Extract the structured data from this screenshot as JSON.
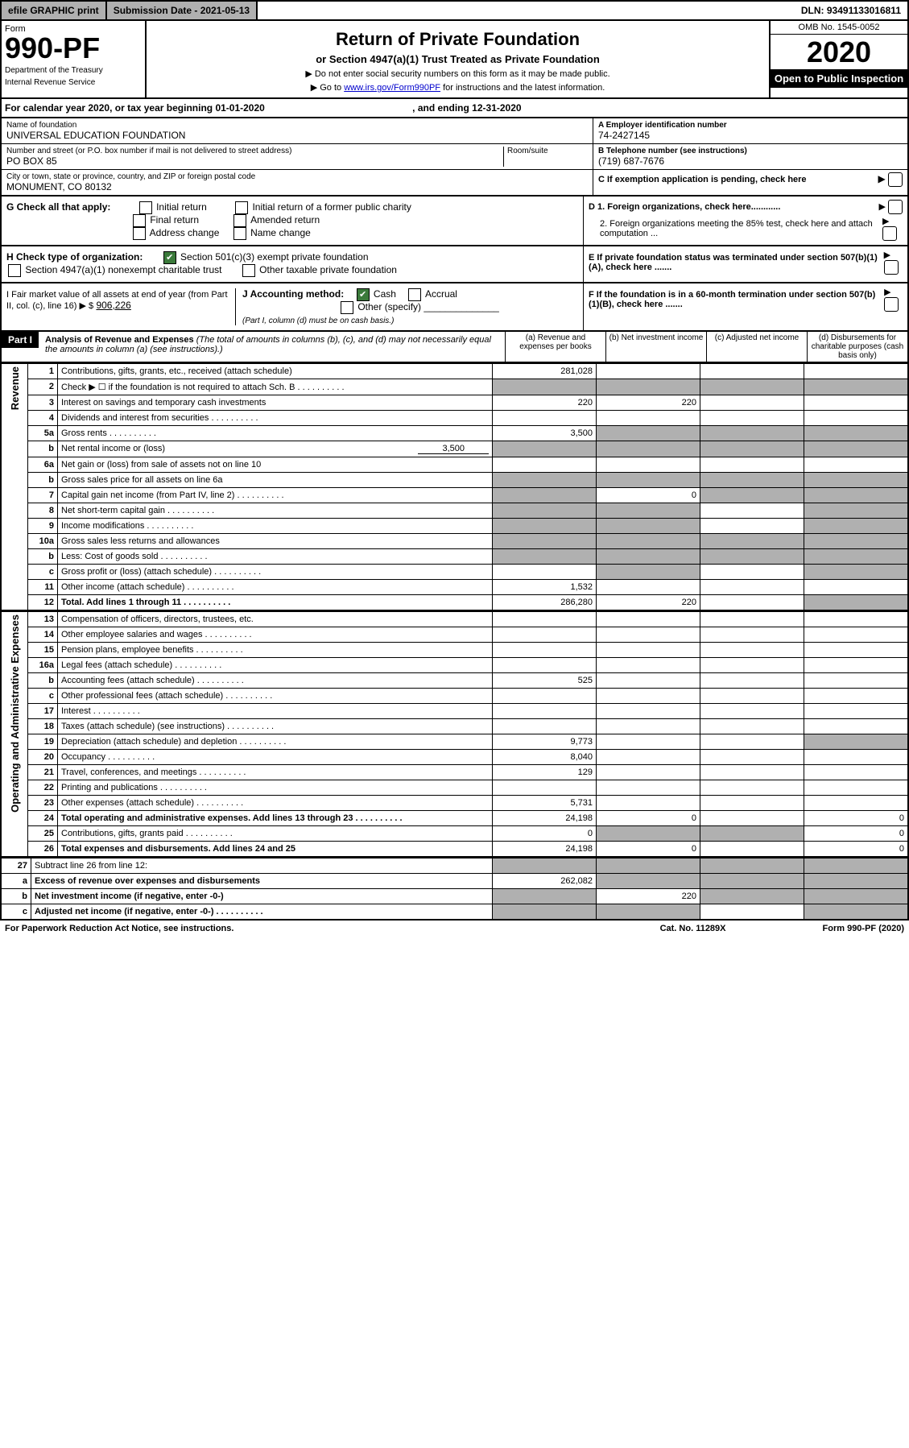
{
  "topbar": {
    "print": "efile GRAPHIC print",
    "submission": "Submission Date - 2021-05-13",
    "dln": "DLN: 93491133016811"
  },
  "hdr": {
    "form": "Form",
    "num": "990-PF",
    "dept": "Department of the Treasury",
    "irs": "Internal Revenue Service",
    "title": "Return of Private Foundation",
    "subtitle": "or Section 4947(a)(1) Trust Treated as Private Foundation",
    "note1": "▶ Do not enter social security numbers on this form as it may be made public.",
    "note2": "▶ Go to ",
    "link": "www.irs.gov/Form990PF",
    "note3": " for instructions and the latest information.",
    "omb": "OMB No. 1545-0052",
    "year": "2020",
    "open": "Open to Public Inspection"
  },
  "cal": {
    "text": "For calendar year 2020, or tax year beginning 01-01-2020",
    "end": ", and ending 12-31-2020"
  },
  "info": {
    "name_lbl": "Name of foundation",
    "name": "UNIVERSAL EDUCATION FOUNDATION",
    "addr_lbl": "Number and street (or P.O. box number if mail is not delivered to street address)",
    "room_lbl": "Room/suite",
    "addr": "PO BOX 85",
    "city_lbl": "City or town, state or province, country, and ZIP or foreign postal code",
    "city": "MONUMENT, CO  80132",
    "ein_lbl": "A Employer identification number",
    "ein": "74-2427145",
    "tel_lbl": "B Telephone number (see instructions)",
    "tel": "(719) 687-7676",
    "c": "C If exemption application is pending, check here",
    "d1": "D 1. Foreign organizations, check here............",
    "d2": "2. Foreign organizations meeting the 85% test, check here and attach computation ...",
    "e": "E If private foundation status was terminated under section 507(b)(1)(A), check here .......",
    "f": "F If the foundation is in a 60-month termination under section 507(b)(1)(B), check here ......."
  },
  "g": {
    "lbl": "G Check all that apply:",
    "i": "Initial return",
    "f": "Final return",
    "a": "Address change",
    "ir": "Initial return of a former public charity",
    "am": "Amended return",
    "n": "Name change"
  },
  "h": {
    "lbl": "H Check type of organization:",
    "s1": "Section 501(c)(3) exempt private foundation",
    "s2": "Section 4947(a)(1) nonexempt charitable trust",
    "s3": "Other taxable private foundation"
  },
  "i": {
    "lbl": "I Fair market value of all assets at end of year (from Part II, col. (c), line 16) ▶ $",
    "val": "906,226"
  },
  "j": {
    "lbl": "J Accounting method:",
    "c": "Cash",
    "a": "Accrual",
    "o": "Other (specify)",
    "note": "(Part I, column (d) must be on cash basis.)"
  },
  "part1": {
    "lbl": "Part I",
    "title": "Analysis of Revenue and Expenses",
    "note": " (The total of amounts in columns (b), (c), and (d) may not necessarily equal the amounts in column (a) (see instructions).)",
    "ca": "(a) Revenue and expenses per books",
    "cb": "(b) Net investment income",
    "cc": "(c) Adjusted net income",
    "cd": "(d) Disbursements for charitable purposes (cash basis only)"
  },
  "side": {
    "rev": "Revenue",
    "exp": "Operating and Administrative Expenses"
  },
  "rows": [
    {
      "n": "1",
      "d": "Contributions, gifts, grants, etc., received (attach schedule)",
      "a": "281,028",
      "g": [
        "b",
        "c",
        "d"
      ]
    },
    {
      "n": "2",
      "d": "Check ▶ ☐ if the foundation is not required to attach Sch. B",
      "dots": true,
      "g": [
        "a",
        "b",
        "c",
        "d"
      ],
      "gfill": true
    },
    {
      "n": "3",
      "d": "Interest on savings and temporary cash investments",
      "a": "220",
      "b": "220"
    },
    {
      "n": "4",
      "d": "Dividends and interest from securities",
      "dots": true
    },
    {
      "n": "5a",
      "d": "Gross rents",
      "dots": true,
      "a": "3,500",
      "g": [
        "b",
        "c",
        "d"
      ],
      "gskip": true
    },
    {
      "n": "b",
      "d": "Net rental income or (loss)",
      "inline": "3,500",
      "g": [
        "a",
        "b",
        "c",
        "d"
      ],
      "gfill": true
    },
    {
      "n": "6a",
      "d": "Net gain or (loss) from sale of assets not on line 10",
      "g": [
        "b",
        "c",
        "d"
      ]
    },
    {
      "n": "b",
      "d": "Gross sales price for all assets on line 6a",
      "g": [
        "a",
        "b",
        "c",
        "d"
      ],
      "gfill": true,
      "uline": true
    },
    {
      "n": "7",
      "d": "Capital gain net income (from Part IV, line 2)",
      "dots": true,
      "b": "0",
      "g": [
        "a",
        "c",
        "d"
      ],
      "gskip": true
    },
    {
      "n": "8",
      "d": "Net short-term capital gain",
      "dots": true,
      "g": [
        "a",
        "b",
        "d"
      ],
      "gskip": true
    },
    {
      "n": "9",
      "d": "Income modifications",
      "dots": true,
      "g": [
        "a",
        "b",
        "d"
      ],
      "gskip": true
    },
    {
      "n": "10a",
      "d": "Gross sales less returns and allowances",
      "g": [
        "a",
        "b",
        "c",
        "d"
      ],
      "gfill": true,
      "box": true
    },
    {
      "n": "b",
      "d": "Less: Cost of goods sold",
      "dots": true,
      "g": [
        "a",
        "b",
        "c",
        "d"
      ],
      "gfill": true,
      "box": true
    },
    {
      "n": "c",
      "d": "Gross profit or (loss) (attach schedule)",
      "dots": true,
      "g": [
        "b",
        "d"
      ],
      "gskip": true
    },
    {
      "n": "11",
      "d": "Other income (attach schedule)",
      "dots": true,
      "a": "1,532"
    },
    {
      "n": "12",
      "d": "Total. Add lines 1 through 11",
      "dots": true,
      "bold": true,
      "a": "286,280",
      "b": "220",
      "g": [
        "d"
      ],
      "gskip": true
    }
  ],
  "exprows": [
    {
      "n": "13",
      "d": "Compensation of officers, directors, trustees, etc."
    },
    {
      "n": "14",
      "d": "Other employee salaries and wages",
      "dots": true
    },
    {
      "n": "15",
      "d": "Pension plans, employee benefits",
      "dots": true
    },
    {
      "n": "16a",
      "d": "Legal fees (attach schedule)",
      "dots": true
    },
    {
      "n": "b",
      "d": "Accounting fees (attach schedule)",
      "dots": true,
      "a": "525"
    },
    {
      "n": "c",
      "d": "Other professional fees (attach schedule)",
      "dots": true
    },
    {
      "n": "17",
      "d": "Interest",
      "dots": true
    },
    {
      "n": "18",
      "d": "Taxes (attach schedule) (see instructions)",
      "dots": true
    },
    {
      "n": "19",
      "d": "Depreciation (attach schedule) and depletion",
      "dots": true,
      "a": "9,773",
      "g": [
        "d"
      ],
      "gskip": true
    },
    {
      "n": "20",
      "d": "Occupancy",
      "dots": true,
      "a": "8,040"
    },
    {
      "n": "21",
      "d": "Travel, conferences, and meetings",
      "dots": true,
      "a": "129"
    },
    {
      "n": "22",
      "d": "Printing and publications",
      "dots": true
    },
    {
      "n": "23",
      "d": "Other expenses (attach schedule)",
      "dots": true,
      "a": "5,731"
    },
    {
      "n": "24",
      "d": "Total operating and administrative expenses. Add lines 13 through 23",
      "dots": true,
      "bold": true,
      "a": "24,198",
      "b": "0",
      "d4": "0"
    },
    {
      "n": "25",
      "d": "Contributions, gifts, grants paid",
      "dots": true,
      "a": "0",
      "d4": "0",
      "g": [
        "b",
        "c"
      ],
      "gskip": true
    },
    {
      "n": "26",
      "d": "Total expenses and disbursements. Add lines 24 and 25",
      "bold": true,
      "a": "24,198",
      "b": "0",
      "d4": "0"
    }
  ],
  "netrows": [
    {
      "n": "27",
      "d": "Subtract line 26 from line 12:",
      "g": [
        "a",
        "b",
        "c",
        "d"
      ],
      "gfill": true
    },
    {
      "n": "a",
      "d": "Excess of revenue over expenses and disbursements",
      "bold": true,
      "a": "262,082",
      "g": [
        "b",
        "c",
        "d"
      ],
      "gskip": true
    },
    {
      "n": "b",
      "d": "Net investment income (if negative, enter -0-)",
      "bold": true,
      "b": "220",
      "g": [
        "a",
        "c",
        "d"
      ],
      "gskip": true
    },
    {
      "n": "c",
      "d": "Adjusted net income (if negative, enter -0-)",
      "bold": true,
      "dots": true,
      "g": [
        "a",
        "b",
        "d"
      ],
      "gskip": true
    }
  ],
  "foot": {
    "l": "For Paperwork Reduction Act Notice, see instructions.",
    "c": "Cat. No. 11289X",
    "r": "Form 990-PF (2020)"
  }
}
